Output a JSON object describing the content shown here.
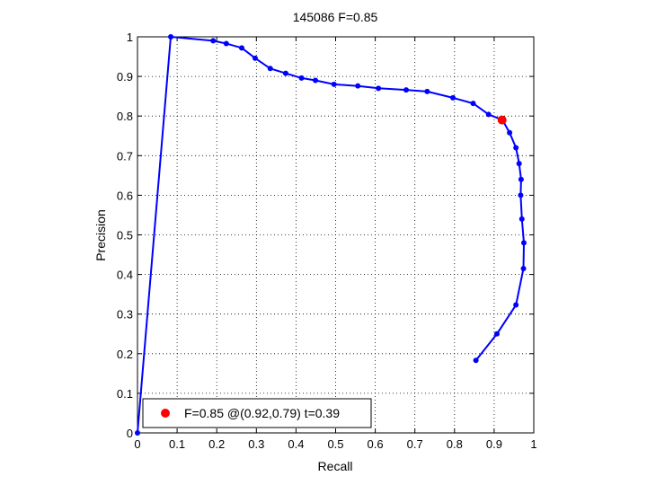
{
  "chart_data": {
    "type": "line",
    "title": "145086 F=0.85",
    "xlabel": "Recall",
    "ylabel": "Precision",
    "xlim": [
      0,
      1
    ],
    "ylim": [
      0,
      1
    ],
    "grid": true,
    "x_ticks": [
      "0",
      "0.1",
      "0.2",
      "0.3",
      "0.4",
      "0.5",
      "0.6",
      "0.7",
      "0.8",
      "0.9",
      "1"
    ],
    "y_ticks": [
      "0",
      "0.1",
      "0.2",
      "0.3",
      "0.4",
      "0.5",
      "0.6",
      "0.7",
      "0.8",
      "0.9",
      "1"
    ],
    "series": [
      {
        "color": "#0000ff",
        "points": [
          [
            0.0,
            0.0
          ],
          [
            0.084,
            1.0
          ],
          [
            0.191,
            0.99
          ],
          [
            0.224,
            0.983
          ],
          [
            0.263,
            0.972
          ],
          [
            0.297,
            0.946
          ],
          [
            0.335,
            0.92
          ],
          [
            0.374,
            0.908
          ],
          [
            0.414,
            0.896
          ],
          [
            0.449,
            0.89
          ],
          [
            0.496,
            0.88
          ],
          [
            0.556,
            0.876
          ],
          [
            0.608,
            0.87
          ],
          [
            0.678,
            0.866
          ],
          [
            0.731,
            0.862
          ],
          [
            0.796,
            0.846
          ],
          [
            0.847,
            0.832
          ],
          [
            0.886,
            0.804
          ],
          [
            0.921,
            0.79
          ],
          [
            0.939,
            0.758
          ],
          [
            0.955,
            0.72
          ],
          [
            0.963,
            0.68
          ],
          [
            0.968,
            0.64
          ],
          [
            0.967,
            0.6
          ],
          [
            0.97,
            0.54
          ],
          [
            0.975,
            0.48
          ],
          [
            0.974,
            0.415
          ],
          [
            0.955,
            0.323
          ],
          [
            0.907,
            0.25
          ],
          [
            0.854,
            0.183
          ]
        ]
      }
    ],
    "highlight_point": {
      "x": 0.92,
      "y": 0.79,
      "color": "#ff0000"
    },
    "legend": {
      "position": "bottom-left",
      "text": "F=0.85 @(0.92,0.79) t=0.39",
      "marker_color": "#ff0000"
    }
  }
}
